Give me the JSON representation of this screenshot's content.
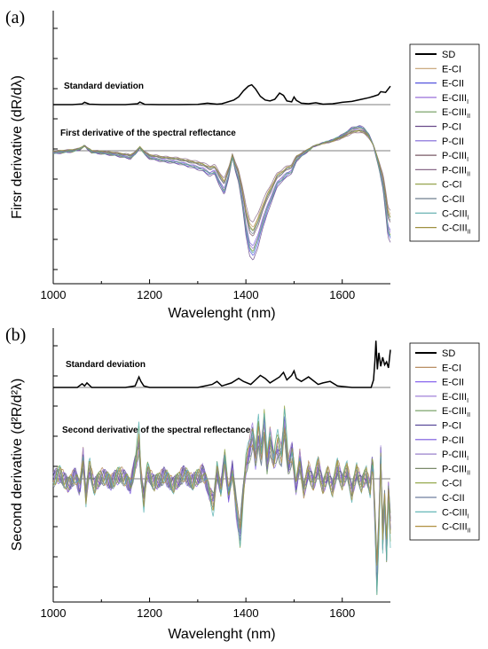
{
  "chart_data": [
    {
      "panel_label": "(a)",
      "type": "line",
      "xlabel": "Wavelenght (nm)",
      "ylabel": "Firsr derivative (dR/dλ)",
      "xlim": [
        1000,
        1700
      ],
      "x_ticks": [
        "1000",
        "1200",
        "1400",
        "1600"
      ],
      "y_ticks_labeled": false,
      "annotations": [
        {
          "text": "Standard deviation"
        },
        {
          "text": "First derivative of the spectral reflectance"
        }
      ],
      "legend": {
        "placement": "right",
        "entries": [
          {
            "main": "SD",
            "sub": "",
            "color": "#000000"
          },
          {
            "main": "E-CI",
            "sub": "",
            "color": "#c4a070"
          },
          {
            "main": "E-CII",
            "sub": "",
            "color": "#5555dd"
          },
          {
            "main": "E-CIII",
            "sub": "I",
            "color": "#9a6fd8"
          },
          {
            "main": "E-CIII",
            "sub": "II",
            "color": "#6f9a5c"
          },
          {
            "main": "P-CI",
            "sub": "",
            "color": "#6a4a8a"
          },
          {
            "main": "P-CII",
            "sub": "",
            "color": "#7d64d8"
          },
          {
            "main": "P-CIII",
            "sub": "I",
            "color": "#7a5a66"
          },
          {
            "main": "P-CIII",
            "sub": "II",
            "color": "#8a6a8a"
          },
          {
            "main": "C-CI",
            "sub": "",
            "color": "#8a9a3a"
          },
          {
            "main": "C-CII",
            "sub": "",
            "color": "#6f7f8f"
          },
          {
            "main": "C-CIII",
            "sub": "I",
            "color": "#5aaaaa"
          },
          {
            "main": "C-CIII",
            "sub": "II",
            "color": "#9f9040"
          }
        ]
      },
      "sd_curve": {
        "baseline": 0.62,
        "x": [
          1000,
          1040,
          1060,
          1065,
          1075,
          1100,
          1150,
          1175,
          1180,
          1190,
          1220,
          1260,
          1300,
          1320,
          1340,
          1350,
          1360,
          1375,
          1385,
          1395,
          1405,
          1412,
          1420,
          1430,
          1440,
          1450,
          1460,
          1470,
          1478,
          1485,
          1495,
          1500,
          1505,
          1515,
          1530,
          1545,
          1560,
          1580,
          1600,
          1620,
          1640,
          1655,
          1665,
          1675,
          1680,
          1690,
          1700
        ],
        "y": [
          0.62,
          0.62,
          0.65,
          0.72,
          0.64,
          0.62,
          0.62,
          0.66,
          0.73,
          0.63,
          0.62,
          0.62,
          0.63,
          0.68,
          0.64,
          0.66,
          0.72,
          0.82,
          0.96,
          1.22,
          1.42,
          1.48,
          1.3,
          0.98,
          0.82,
          0.78,
          0.85,
          1.12,
          1.02,
          0.78,
          0.74,
          0.95,
          0.8,
          0.68,
          0.66,
          0.7,
          0.64,
          0.66,
          0.72,
          0.76,
          0.85,
          0.92,
          0.98,
          1.05,
          1.18,
          1.15,
          1.42
        ]
      },
      "mean_curve": {
        "x": [
          1000,
          1020,
          1040,
          1055,
          1065,
          1070,
          1080,
          1100,
          1130,
          1160,
          1170,
          1180,
          1190,
          1200,
          1230,
          1260,
          1290,
          1310,
          1325,
          1335,
          1345,
          1355,
          1365,
          1372,
          1378,
          1385,
          1392,
          1400,
          1408,
          1415,
          1425,
          1435,
          1445,
          1455,
          1465,
          1475,
          1485,
          1495,
          1505,
          1520,
          1540,
          1560,
          1580,
          1600,
          1620,
          1635,
          1645,
          1655,
          1665,
          1675,
          1685,
          1690,
          1695,
          1700
        ],
        "y": [
          -0.2,
          -0.1,
          0.0,
          0.2,
          0.6,
          0.3,
          -0.1,
          -0.2,
          -0.4,
          -0.7,
          -0.3,
          0.4,
          -0.3,
          -0.7,
          -1.0,
          -1.2,
          -1.6,
          -1.9,
          -2.4,
          -2.2,
          -3.3,
          -4.3,
          -2.4,
          -0.6,
          -1.9,
          -3.0,
          -5.2,
          -8.2,
          -10.3,
          -10.8,
          -9.4,
          -7.6,
          -6.0,
          -4.8,
          -3.4,
          -3.0,
          -2.4,
          -2.2,
          -0.9,
          -0.3,
          0.5,
          0.9,
          1.2,
          1.7,
          2.4,
          2.6,
          2.4,
          1.8,
          0.6,
          -1.4,
          -3.8,
          -6.0,
          -8.4,
          -9.0
        ]
      },
      "series_offsets": [
        0.0,
        0.25,
        -0.35,
        -0.2,
        0.3,
        -0.45,
        -0.1,
        0.15,
        0.4,
        -0.3,
        0.2,
        -0.15,
        0.35
      ],
      "series_scales": [
        1.0,
        0.85,
        1.15,
        1.08,
        0.9,
        1.2,
        1.05,
        0.95,
        0.8,
        1.1,
        0.92,
        1.12,
        0.88
      ]
    },
    {
      "panel_label": "(b)",
      "type": "line",
      "xlabel": "Wavelenght (nm)",
      "ylabel": "Second derivative (d²R/d²λ)",
      "xlim": [
        1000,
        1700
      ],
      "x_ticks": [
        "1000",
        "1200",
        "1400",
        "1600"
      ],
      "y_ticks_labeled": false,
      "annotations": [
        {
          "text": "Standard deviation"
        },
        {
          "text": "Second derivative of the spectral reflectance"
        }
      ],
      "legend": {
        "placement": "right",
        "entries": [
          {
            "main": "SD",
            "sub": "",
            "color": "#000000"
          },
          {
            "main": "E-CI",
            "sub": "",
            "color": "#b08050"
          },
          {
            "main": "E-CII",
            "sub": "",
            "color": "#8866ee"
          },
          {
            "main": "E-CIII",
            "sub": "I",
            "color": "#a080d8"
          },
          {
            "main": "E-CIII",
            "sub": "II",
            "color": "#6f9a5c"
          },
          {
            "main": "P-CI",
            "sub": "",
            "color": "#5a4a9a"
          },
          {
            "main": "P-CII",
            "sub": "",
            "color": "#7755dd"
          },
          {
            "main": "P-CIII",
            "sub": "I",
            "color": "#9a80cc"
          },
          {
            "main": "P-CIII",
            "sub": "II",
            "color": "#7a8a6a"
          },
          {
            "main": "C-CI",
            "sub": "",
            "color": "#8aa03a"
          },
          {
            "main": "C-CII",
            "sub": "",
            "color": "#6f7f9f"
          },
          {
            "main": "C-CIII",
            "sub": "I",
            "color": "#55b0b0"
          },
          {
            "main": "C-CIII",
            "sub": "II",
            "color": "#b09040"
          }
        ]
      },
      "sd_curve": {
        "baseline": 0.1,
        "x": [
          1000,
          1050,
          1060,
          1065,
          1070,
          1080,
          1100,
          1150,
          1170,
          1178,
          1182,
          1188,
          1200,
          1260,
          1300,
          1330,
          1340,
          1350,
          1370,
          1385,
          1395,
          1410,
          1420,
          1430,
          1440,
          1450,
          1460,
          1470,
          1478,
          1485,
          1495,
          1500,
          1505,
          1515,
          1530,
          1550,
          1560,
          1575,
          1590,
          1620,
          1650,
          1660,
          1665,
          1668,
          1670,
          1673,
          1676,
          1680,
          1684,
          1688,
          1692,
          1696,
          1700
        ],
        "y": [
          0.1,
          0.1,
          0.35,
          0.2,
          0.4,
          0.1,
          0.1,
          0.1,
          0.2,
          0.8,
          0.5,
          0.2,
          0.1,
          0.1,
          0.1,
          0.3,
          0.5,
          0.2,
          0.4,
          0.7,
          0.5,
          0.3,
          0.6,
          0.9,
          0.7,
          0.4,
          0.6,
          0.8,
          1.1,
          0.6,
          0.9,
          1.2,
          0.7,
          0.5,
          0.8,
          0.3,
          0.4,
          0.5,
          0.2,
          0.1,
          0.1,
          0.1,
          0.6,
          1.9,
          3.2,
          1.3,
          2.4,
          1.5,
          2.1,
          1.6,
          1.8,
          1.4,
          2.6
        ]
      },
      "mean_curve": {
        "x": [
          1000,
          1015,
          1030,
          1045,
          1055,
          1062,
          1068,
          1075,
          1085,
          1100,
          1120,
          1140,
          1160,
          1172,
          1178,
          1182,
          1188,
          1195,
          1210,
          1230,
          1250,
          1270,
          1290,
          1310,
          1325,
          1333,
          1340,
          1348,
          1356,
          1364,
          1372,
          1380,
          1388,
          1394,
          1400,
          1408,
          1414,
          1420,
          1426,
          1432,
          1438,
          1444,
          1450,
          1458,
          1466,
          1474,
          1480,
          1488,
          1496,
          1504,
          1512,
          1520,
          1530,
          1540,
          1550,
          1560,
          1570,
          1580,
          1590,
          1600,
          1610,
          1620,
          1630,
          1640,
          1650,
          1658,
          1663,
          1668,
          1672,
          1676,
          1680,
          1684,
          1688,
          1692,
          1696,
          1700
        ],
        "y": [
          0.0,
          0.3,
          -0.4,
          0.2,
          -0.6,
          1.3,
          -1.2,
          0.8,
          -0.5,
          0.2,
          -0.2,
          0.3,
          -0.4,
          1.1,
          2.4,
          0.3,
          -1.3,
          0.5,
          -0.3,
          0.2,
          -0.4,
          0.3,
          -0.2,
          0.4,
          -0.8,
          -1.6,
          0.5,
          -0.6,
          1.2,
          -0.9,
          0.6,
          -1.8,
          -3.2,
          -1.0,
          0.8,
          1.9,
          2.6,
          1.2,
          2.9,
          1.5,
          3.2,
          0.9,
          2.4,
          1.0,
          2.1,
          1.4,
          3.3,
          0.8,
          1.6,
          -0.5,
          1.2,
          -0.8,
          0.6,
          -0.4,
          0.9,
          -0.6,
          0.4,
          -0.7,
          0.8,
          -0.3,
          0.6,
          -0.9,
          0.5,
          -0.4,
          0.3,
          -0.6,
          1.2,
          -2.4,
          -5.8,
          -2.8,
          1.4,
          -3.6,
          -1.2,
          -4.2,
          -0.6,
          -3.0
        ]
      },
      "series_offsets": [
        0.0,
        0.2,
        -0.25,
        0.1,
        -0.15,
        0.3,
        -0.2,
        0.15,
        -0.1,
        0.25,
        -0.3,
        0.05,
        -0.05
      ],
      "series_scales": [
        1.0,
        1.15,
        0.9,
        1.2,
        0.85,
        1.05,
        1.1,
        0.95,
        0.8,
        1.25,
        0.9,
        1.3,
        1.0
      ]
    }
  ]
}
